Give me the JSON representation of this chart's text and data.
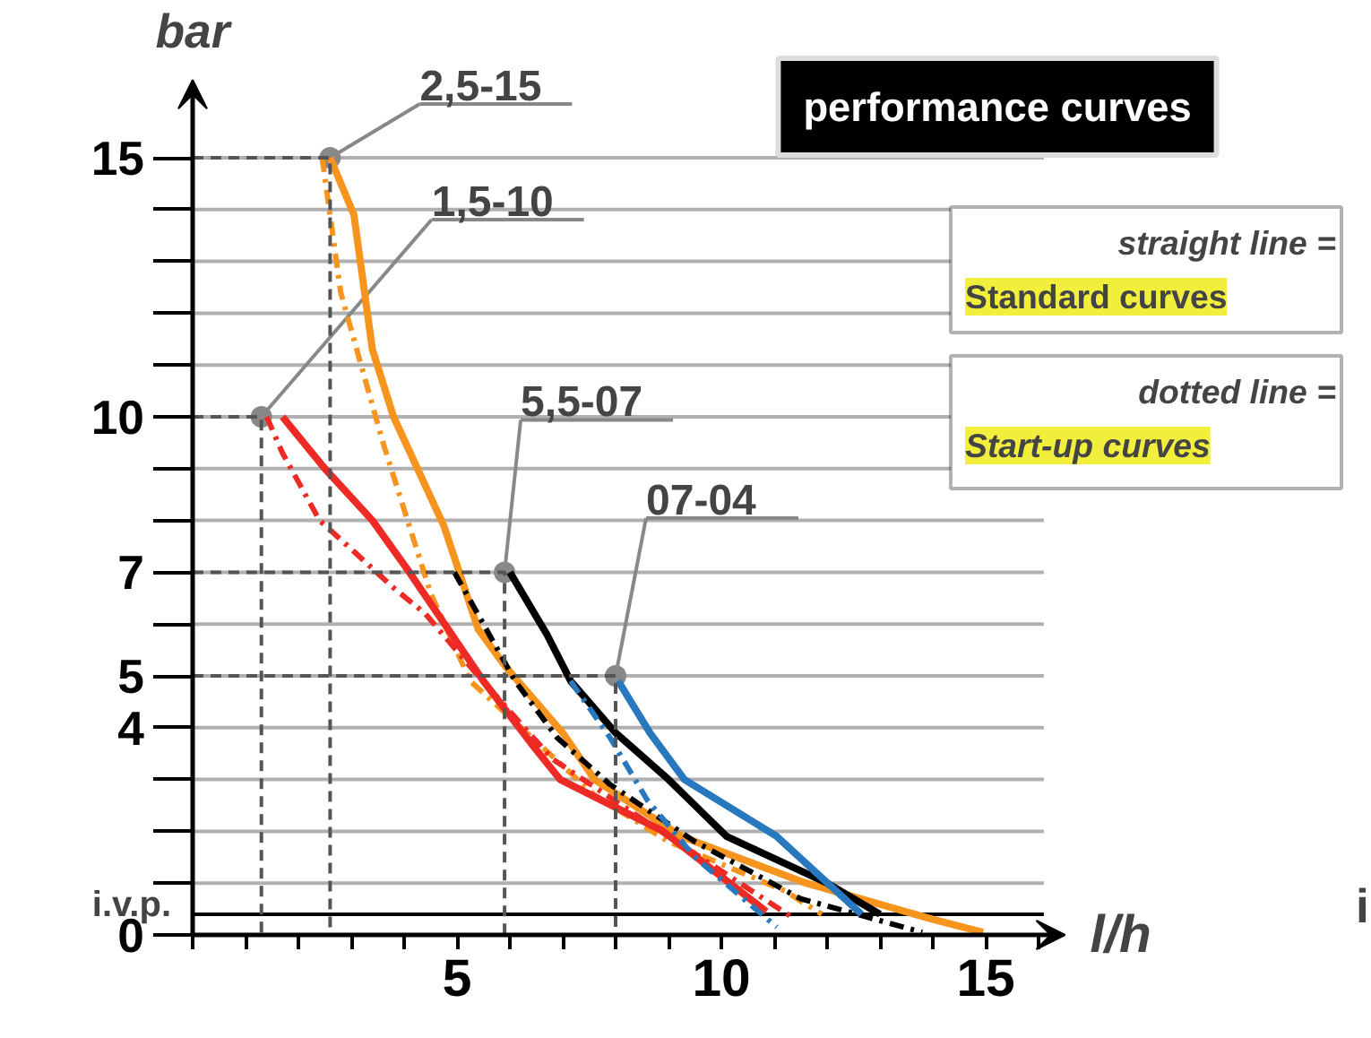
{
  "chart_data": {
    "type": "line",
    "title": "performance curves",
    "xlabel": "l/h",
    "ylabel": "bar",
    "xlim": [
      0,
      16.5
    ],
    "ylim": [
      0,
      16.5
    ],
    "xticks": [
      {
        "value": 0,
        "label": null
      },
      {
        "value": 1,
        "label": null
      },
      {
        "value": 2,
        "label": null
      },
      {
        "value": 3,
        "label": null
      },
      {
        "value": 4,
        "label": null
      },
      5,
      {
        "value": 6,
        "label": null
      },
      {
        "value": 7,
        "label": null
      },
      {
        "value": 8,
        "label": null
      },
      {
        "value": 9,
        "label": null
      },
      10,
      {
        "value": 11,
        "label": null
      },
      {
        "value": 12,
        "label": null
      },
      {
        "value": 13,
        "label": null
      },
      {
        "value": 14,
        "label": null
      },
      15,
      {
        "value": 16,
        "label": null
      }
    ],
    "yticks": [
      0,
      {
        "value": 1,
        "label": null
      },
      {
        "value": 2,
        "label": null
      },
      {
        "value": 3,
        "label": null
      },
      4,
      5,
      {
        "value": 6,
        "label": null
      },
      7,
      {
        "value": 8,
        "label": null
      },
      {
        "value": 9,
        "label": null
      },
      10,
      {
        "value": 11,
        "label": null
      },
      {
        "value": 12,
        "label": null
      },
      {
        "value": 13,
        "label": null
      },
      {
        "value": 14,
        "label": null
      },
      15
    ],
    "grid": "y",
    "marker": "none",
    "ref_lines": [
      {
        "axis": "y",
        "value": 0.4,
        "label": "i.v.p.",
        "color": "#000000"
      }
    ],
    "series": [
      {
        "color": "#f7941d",
        "line_style": "solid",
        "x": [
          2.6,
          3.05,
          3.4,
          3.8,
          4.75,
          5.4,
          5.9,
          7.0,
          7.6,
          9.25,
          11.6,
          14.0,
          14.95
        ],
        "values": [
          15,
          13.9,
          11.3,
          10,
          7.9,
          5.9,
          5.2,
          3.9,
          3.0,
          1.9,
          1.0,
          0.3,
          0.05
        ]
      },
      {
        "color": "#f7941d",
        "line_style": "dashdot",
        "x": [
          2.45,
          2.8,
          3.6,
          4.5,
          5.25,
          6.0,
          7.6,
          9.0,
          11.2,
          11.9
        ],
        "values": [
          15,
          12.4,
          9.5,
          6.6,
          4.9,
          4.2,
          2.7,
          1.8,
          0.85,
          0.4
        ]
      },
      {
        "color": "#ee2a24",
        "line_style": "solid",
        "x": [
          1.7,
          2.5,
          3.4,
          4.1,
          5.5,
          6.4,
          6.95,
          8.9,
          10.85
        ],
        "values": [
          10,
          9.0,
          8.0,
          7.0,
          4.9,
          3.7,
          3.0,
          2.0,
          0.45
        ]
      },
      {
        "color": "#ee2a24",
        "line_style": "dashdot",
        "x": [
          1.4,
          1.7,
          2.4,
          3.05,
          3.8,
          4.4,
          5.4,
          6.8,
          9.0,
          11.4
        ],
        "values": [
          10,
          9.3,
          8.0,
          7.4,
          6.7,
          6.2,
          5.0,
          3.4,
          1.9,
          0.3
        ]
      },
      {
        "color": "#000000",
        "line_style": "solid",
        "x": [
          6.0,
          6.7,
          7.15,
          8.0,
          9.0,
          10.1,
          12.0,
          13.0
        ],
        "values": [
          7.0,
          5.8,
          4.9,
          3.9,
          3.0,
          1.9,
          1.0,
          0.4
        ]
      },
      {
        "color": "#000000",
        "line_style": "dashdot",
        "x": [
          4.95,
          5.5,
          6.1,
          6.9,
          7.9,
          9.5,
          11.5,
          13.8
        ],
        "values": [
          7.0,
          6.0,
          4.9,
          3.8,
          2.9,
          1.8,
          0.7,
          0.05
        ]
      },
      {
        "color": "#2878be",
        "line_style": "solid",
        "x": [
          8.05,
          8.65,
          9.3,
          11.05,
          12.65
        ],
        "values": [
          4.9,
          3.9,
          3.0,
          1.9,
          0.4
        ]
      },
      {
        "color": "#2878be",
        "line_style": "dashdot",
        "x": [
          7.15,
          7.9,
          8.6,
          9.5,
          11.05
        ],
        "values": [
          4.9,
          3.8,
          2.6,
          1.5,
          0.15
        ]
      },
      {
        "color": "#555555",
        "line_style": "dashed",
        "x": [
          0,
          2.6,
          2.6
        ],
        "values": [
          15,
          15,
          0
        ]
      },
      {
        "color": "#555555",
        "line_style": "dashed",
        "x": [
          0,
          1.3,
          1.3
        ],
        "values": [
          10,
          10,
          0
        ]
      },
      {
        "color": "#555555",
        "line_style": "dashed",
        "x": [
          0,
          5.9,
          5.9
        ],
        "values": [
          7,
          7,
          0
        ]
      },
      {
        "color": "#555555",
        "line_style": "dashed",
        "x": [
          0,
          8.0,
          8.0
        ],
        "values": [
          5,
          5,
          0
        ]
      }
    ],
    "annotations": [
      {
        "text": "2,5-15",
        "x": 2.6,
        "y": 15
      },
      {
        "text": "1,5-10",
        "x": 1.3,
        "y": 10
      },
      {
        "text": "5,5-07",
        "x": 5.9,
        "y": 7
      },
      {
        "text": "07-04",
        "x": 8.0,
        "y": 5
      },
      "straight line =",
      "Standard curves",
      "dotted line =",
      "Start-up curves",
      "i"
    ]
  }
}
